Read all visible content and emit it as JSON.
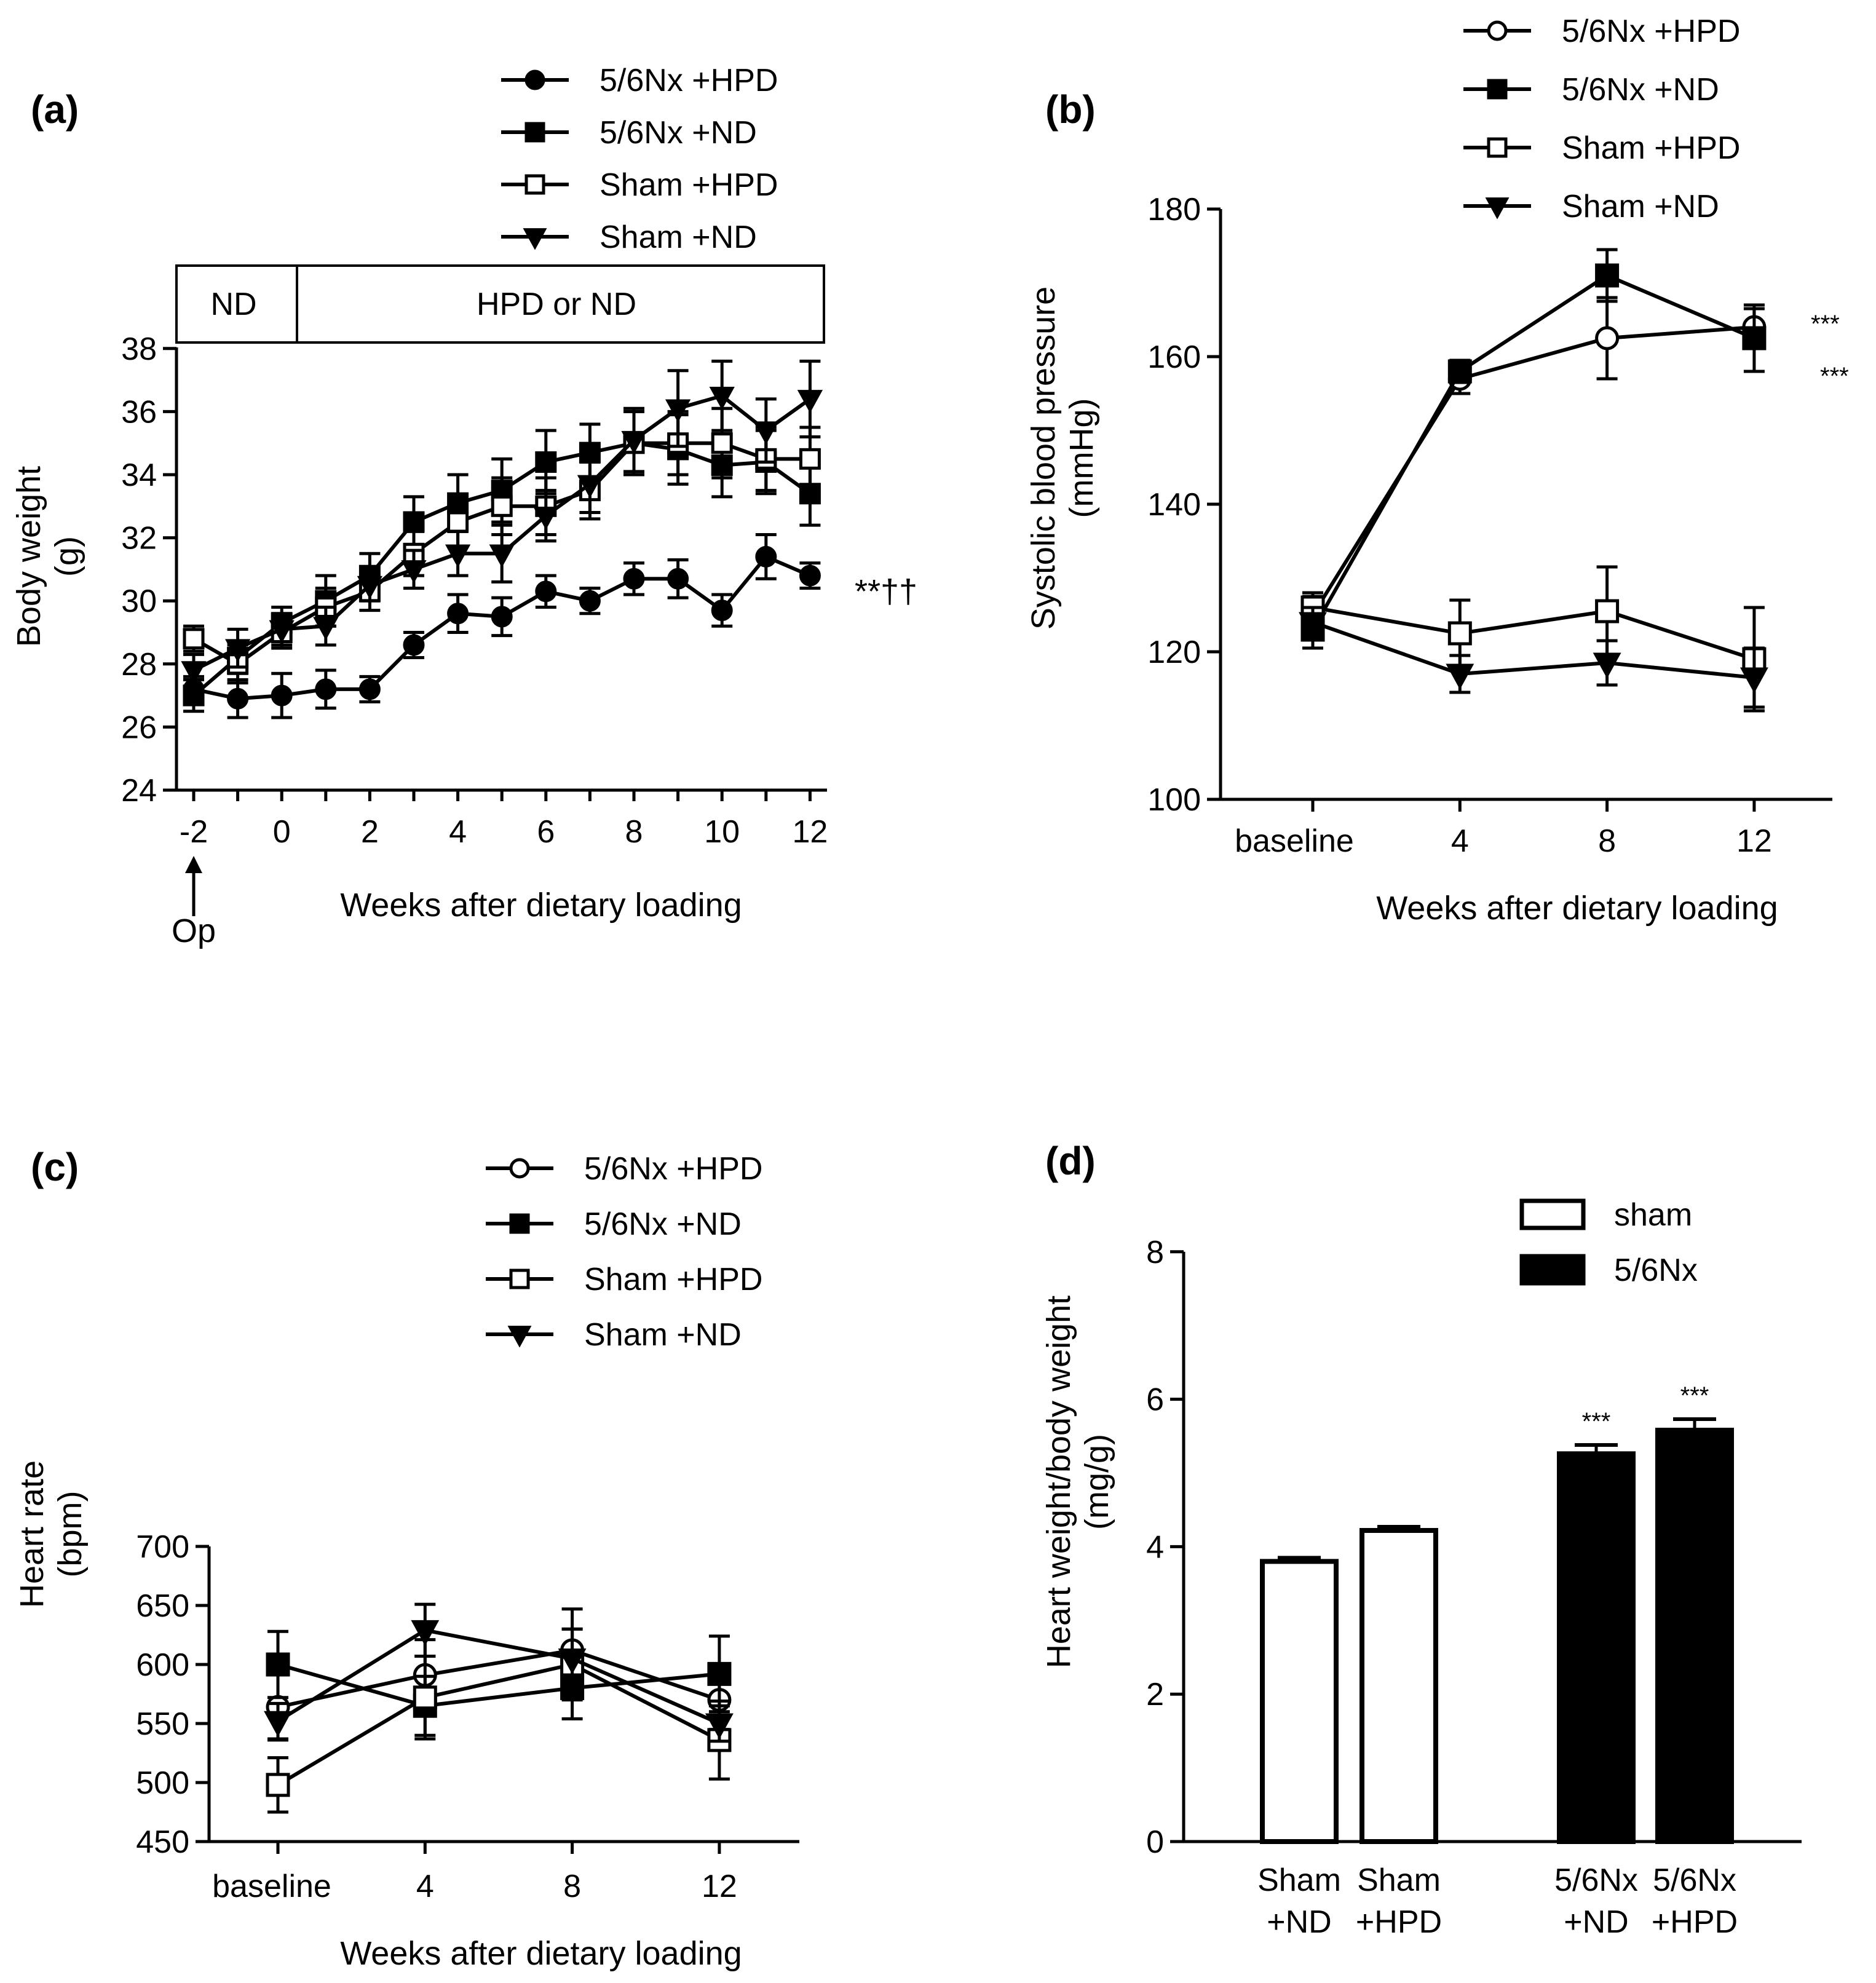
{
  "chart_data": [
    {
      "id": "a",
      "panel_label": "(a)",
      "type": "line",
      "xlabel": "Weeks after dietary loading",
      "ylabel": "Body weight",
      "ylabel_unit": "(g)",
      "x_ticks": [
        -2,
        0,
        2,
        4,
        6,
        8,
        10,
        12
      ],
      "y_ticks": [
        24,
        26,
        28,
        30,
        32,
        34,
        36,
        38
      ],
      "xlim": [
        -2.5,
        12.5
      ],
      "ylim": [
        24,
        38
      ],
      "grid": false,
      "header_boxes": [
        "ND",
        "HPD or ND"
      ],
      "operation_marker": {
        "label": "Op",
        "x": -2
      },
      "significance": "**††",
      "legend": [
        "5/6Nx  +HPD",
        "5/6Nx  +ND",
        "Sham  +HPD",
        "Sham  +ND"
      ],
      "x": [
        -2,
        -1,
        0,
        1,
        2,
        3,
        4,
        5,
        6,
        7,
        8,
        9,
        10,
        11,
        12
      ],
      "series": [
        {
          "name": "5/6Nx  +HPD",
          "marker": "circle-filled",
          "values": [
            27.2,
            26.9,
            27.0,
            27.2,
            27.2,
            28.6,
            29.6,
            29.5,
            30.3,
            30.0,
            30.7,
            30.7,
            29.7,
            31.4,
            30.8
          ],
          "errors": [
            0.4,
            0.6,
            0.7,
            0.6,
            0.4,
            0.4,
            0.6,
            0.6,
            0.5,
            0.4,
            0.5,
            0.6,
            0.5,
            0.7,
            0.4
          ]
        },
        {
          "name": "5/6Nx  +ND",
          "marker": "square-filled",
          "values": [
            27.0,
            28.2,
            29.3,
            30.0,
            30.8,
            32.5,
            33.1,
            33.5,
            34.4,
            34.7,
            35.0,
            34.8,
            34.3,
            34.4,
            33.4
          ],
          "errors": [
            0.5,
            0.5,
            0.5,
            0.8,
            0.7,
            0.8,
            0.9,
            1.0,
            1.0,
            0.9,
            1.0,
            1.1,
            1.0,
            1.0,
            1.0
          ]
        },
        {
          "name": "Sham  +HPD",
          "marker": "square-open",
          "values": [
            28.8,
            28.0,
            29.0,
            29.8,
            30.3,
            31.5,
            32.5,
            33.0,
            33.0,
            33.5,
            35.0,
            35.0,
            35.0,
            34.5,
            34.5
          ],
          "errors": [
            0.4,
            0.6,
            0.5,
            0.6,
            0.6,
            0.7,
            0.8,
            0.9,
            0.9,
            0.9,
            1.0,
            1.0,
            1.1,
            1.0,
            1.0
          ]
        },
        {
          "name": "Sham  +ND",
          "marker": "triangle-down-filled",
          "values": [
            27.8,
            28.5,
            29.1,
            29.2,
            30.5,
            31.0,
            31.5,
            31.5,
            32.7,
            33.7,
            35.1,
            36.1,
            36.5,
            35.4,
            36.4
          ],
          "errors": [
            0.5,
            0.6,
            0.5,
            0.6,
            0.5,
            0.6,
            0.7,
            0.9,
            0.8,
            0.9,
            1.0,
            1.2,
            1.1,
            1.0,
            1.2
          ]
        }
      ]
    },
    {
      "id": "b",
      "panel_label": "(b)",
      "type": "line",
      "xlabel": "Weeks after dietary loading",
      "ylabel": "Systolic blood pressure",
      "ylabel_unit": "(mmHg)",
      "categories": [
        "baseline",
        "4",
        "8",
        "12"
      ],
      "y_ticks": [
        100,
        120,
        140,
        160,
        180
      ],
      "ylim": [
        100,
        180
      ],
      "grid": false,
      "significance": [
        "***",
        "***"
      ],
      "legend": [
        "5/6Nx  +HPD",
        "5/6Nx  +ND",
        "Sham  +HPD",
        "Sham  +ND"
      ],
      "series": [
        {
          "name": "5/6Nx  +HPD",
          "marker": "circle-open",
          "values": [
            125,
            157,
            162.5,
            164
          ],
          "errors": [
            2.5,
            2.0,
            5.5,
            2.5
          ]
        },
        {
          "name": "5/6Nx  +ND",
          "marker": "square-filled",
          "values": [
            123,
            158,
            171,
            162.5
          ],
          "errors": [
            2.5,
            1.5,
            3.5,
            4.5
          ]
        },
        {
          "name": "Sham  +HPD",
          "marker": "square-open",
          "values": [
            126,
            122.5,
            125.5,
            119
          ],
          "errors": [
            2.0,
            4.5,
            6.0,
            7.0
          ]
        },
        {
          "name": "Sham  +ND",
          "marker": "triangle-down-filled",
          "values": [
            124,
            117,
            118.5,
            116.5
          ],
          "errors": [
            2.0,
            2.5,
            3.0,
            4.0
          ]
        }
      ]
    },
    {
      "id": "c",
      "panel_label": "(c)",
      "type": "line",
      "xlabel": "Weeks after dietary loading",
      "ylabel": "Heart rate",
      "ylabel_unit": "(bpm)",
      "categories": [
        "baseline",
        "4",
        "8",
        "12"
      ],
      "y_ticks": [
        450,
        500,
        550,
        600,
        650,
        700
      ],
      "ylim": [
        450,
        700
      ],
      "grid": false,
      "legend": [
        "5/6Nx  +HPD",
        "5/6Nx  +ND",
        "Sham +HPD",
        "Sham +ND"
      ],
      "series": [
        {
          "name": "5/6Nx  +HPD",
          "marker": "circle-open",
          "values": [
            564,
            591,
            612,
            570
          ],
          "errors": [
            28,
            30,
            35,
            25
          ]
        },
        {
          "name": "5/6Nx  +ND",
          "marker": "square-filled",
          "values": [
            600,
            565,
            580,
            592
          ],
          "errors": [
            28,
            25,
            26,
            32
          ]
        },
        {
          "name": "Sham +HPD",
          "marker": "square-open",
          "values": [
            498,
            572,
            600,
            536
          ],
          "errors": [
            23,
            35,
            30,
            33
          ]
        },
        {
          "name": "Sham +ND",
          "marker": "triangle-down-filled",
          "values": [
            552,
            629,
            605,
            550
          ],
          "errors": [
            15,
            22,
            25,
            15
          ]
        }
      ]
    },
    {
      "id": "d",
      "panel_label": "(d)",
      "type": "bar",
      "ylabel": "Heart weight/body weight",
      "ylabel_unit": "(mg/g)",
      "y_ticks": [
        0,
        2,
        4,
        6,
        8
      ],
      "ylim": [
        0,
        8
      ],
      "grid": false,
      "legend": [
        {
          "label": "sham",
          "fill": "open"
        },
        {
          "label": "5/6Nx",
          "fill": "solid"
        }
      ],
      "categories": [
        {
          "line1": "Sham",
          "line2": "+ND"
        },
        {
          "line1": "Sham",
          "line2": "+HPD"
        },
        {
          "line1": "5/6Nx",
          "line2": "+ND"
        },
        {
          "line1": "5/6Nx",
          "line2": "+HPD"
        }
      ],
      "values": [
        3.8,
        4.22,
        5.26,
        5.58
      ],
      "errors": [
        0.05,
        0.05,
        0.12,
        0.15
      ],
      "group": [
        "sham",
        "sham",
        "5/6Nx",
        "5/6Nx"
      ],
      "significance": [
        "",
        "",
        "***",
        "***"
      ]
    }
  ]
}
